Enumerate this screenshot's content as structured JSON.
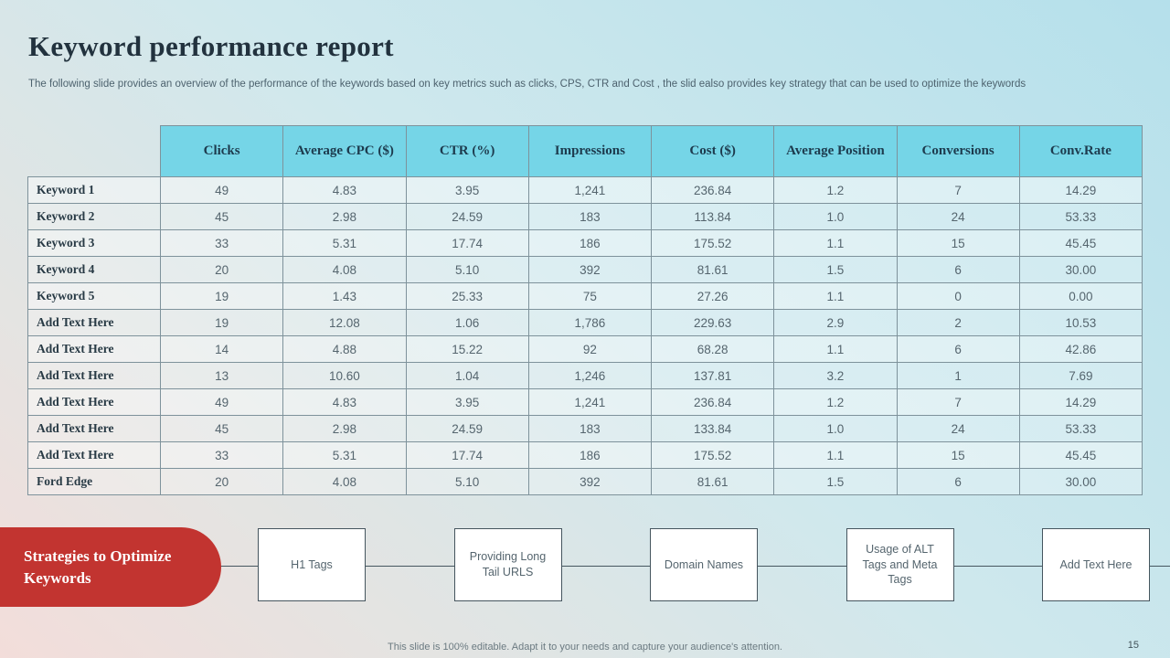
{
  "slide": {
    "title": "Keyword performance report",
    "subtitle": "The following slide provides an overview of the performance of the keywords based on key metrics such as clicks, CPS, CTR and Cost , the slid ealso provides key strategy that can be used to optimize the keywords",
    "footer_note": "This slide is 100% editable. Adapt it to your needs and capture your audience's attention.",
    "page_number": "15"
  },
  "table": {
    "columns": [
      "Clicks",
      "Average CPC ($)",
      "CTR (%)",
      "Impressions",
      "Cost ($)",
      "Average Position",
      "Conversions",
      "Conv.Rate"
    ],
    "rows": [
      {
        "label": "Keyword 1",
        "values": [
          "49",
          "4.83",
          "3.95",
          "1,241",
          "236.84",
          "1.2",
          "7",
          "14.29"
        ]
      },
      {
        "label": "Keyword 2",
        "values": [
          "45",
          "2.98",
          "24.59",
          "183",
          "113.84",
          "1.0",
          "24",
          "53.33"
        ]
      },
      {
        "label": "Keyword 3",
        "values": [
          "33",
          "5.31",
          "17.74",
          "186",
          "175.52",
          "1.1",
          "15",
          "45.45"
        ]
      },
      {
        "label": "Keyword 4",
        "values": [
          "20",
          "4.08",
          "5.10",
          "392",
          "81.61",
          "1.5",
          "6",
          "30.00"
        ]
      },
      {
        "label": "Keyword 5",
        "values": [
          "19",
          "1.43",
          "25.33",
          "75",
          "27.26",
          "1.1",
          "0",
          "0.00"
        ]
      },
      {
        "label": "Add Text Here",
        "values": [
          "19",
          "12.08",
          "1.06",
          "1,786",
          "229.63",
          "2.9",
          "2",
          "10.53"
        ]
      },
      {
        "label": "Add Text Here",
        "values": [
          "14",
          "4.88",
          "15.22",
          "92",
          "68.28",
          "1.1",
          "6",
          "42.86"
        ]
      },
      {
        "label": "Add Text Here",
        "values": [
          "13",
          "10.60",
          "1.04",
          "1,246",
          "137.81",
          "3.2",
          "1",
          "7.69"
        ]
      },
      {
        "label": "Add Text Here",
        "values": [
          "49",
          "4.83",
          "3.95",
          "1,241",
          "236.84",
          "1.2",
          "7",
          "14.29"
        ]
      },
      {
        "label": "Add Text Here",
        "values": [
          "45",
          "2.98",
          "24.59",
          "183",
          "133.84",
          "1.0",
          "24",
          "53.33"
        ]
      },
      {
        "label": "Add Text Here",
        "values": [
          "33",
          "5.31",
          "17.74",
          "186",
          "175.52",
          "1.1",
          "15",
          "45.45"
        ]
      },
      {
        "label": "Ford Edge",
        "values": [
          "20",
          "4.08",
          "5.10",
          "392",
          "81.61",
          "1.5",
          "6",
          "30.00"
        ]
      }
    ]
  },
  "strategies": {
    "label": "Strategies to Optimize Keywords",
    "items": [
      "H1 Tags",
      "Providing Long Tail URLS",
      "Domain Names",
      "Usage of ALT Tags and Meta Tags",
      "Add Text Here"
    ]
  },
  "colors": {
    "header_bg": "#75d5e7",
    "accent_red": "#c23430",
    "title_text": "#22323e"
  }
}
